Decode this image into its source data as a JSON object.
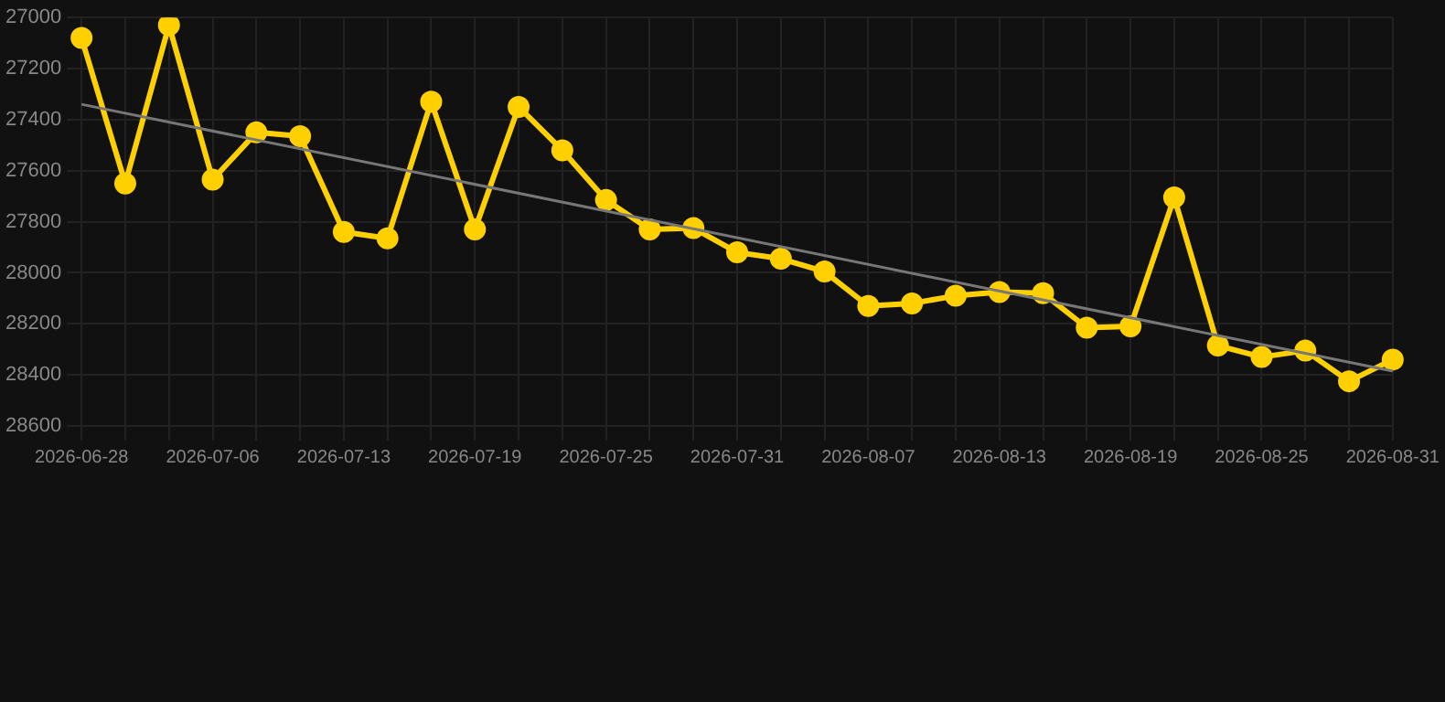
{
  "chart_data": {
    "type": "line",
    "categories": [
      "2026-06-28",
      null,
      null,
      "2026-07-06",
      null,
      null,
      "2026-07-13",
      null,
      null,
      "2026-07-19",
      null,
      null,
      "2026-07-25",
      null,
      null,
      "2026-07-31",
      null,
      null,
      "2026-08-07",
      null,
      null,
      "2026-08-13",
      null,
      null,
      "2026-08-19",
      null,
      null,
      "2026-08-25",
      null,
      null,
      "2026-08-31"
    ],
    "series": [
      {
        "color": "#ffd000",
        "marker": "circle",
        "values": [
          27080,
          27650,
          27030,
          27635,
          27450,
          27465,
          27840,
          27865,
          27330,
          27830,
          27350,
          27520,
          27715,
          27830,
          27825,
          27920,
          27945,
          27995,
          28130,
          28120,
          28090,
          28075,
          28080,
          28215,
          28210,
          27705,
          28285,
          28330,
          28305,
          28425,
          28340
        ]
      },
      {
        "type": "line",
        "color": "#777777",
        "marker": "none",
        "values": [
          27340,
          null,
          null,
          null,
          null,
          null,
          null,
          null,
          null,
          null,
          null,
          null,
          null,
          null,
          null,
          null,
          null,
          null,
          null,
          null,
          null,
          null,
          null,
          null,
          null,
          null,
          null,
          null,
          null,
          null,
          28385
        ]
      }
    ],
    "ylim": [
      28600,
      27000
    ],
    "yticks": [
      27000,
      27200,
      27400,
      27600,
      27800,
      28000,
      28200,
      28400,
      28600
    ],
    "grid": true,
    "legend": false
  }
}
